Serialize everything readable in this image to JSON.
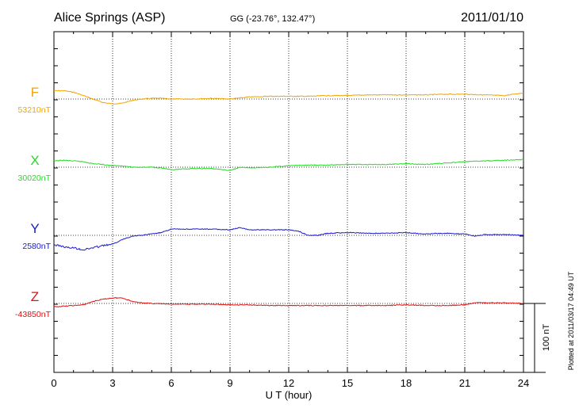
{
  "header": {
    "station": "Alice Springs (ASP)",
    "coords": "GG (-23.76°, 132.47°)",
    "date": "2011/01/10"
  },
  "side_note": "Plotted at 2011/03/17 04:49 UT",
  "scale_bar_label": "100 nT",
  "chart_data": {
    "type": "line",
    "title": "Alice Springs (ASP)",
    "subtitle": "GG (-23.76°, 132.47°)",
    "date": "2011/01/10",
    "xlabel": "U T (hour)",
    "xlim": [
      0,
      24
    ],
    "xticks": [
      0,
      3,
      6,
      9,
      12,
      15,
      18,
      21,
      24
    ],
    "grid": true,
    "scale_nT": 100,
    "series": [
      {
        "name": "F",
        "baseline_label": "53210nT",
        "baseline_nT": 53210,
        "color": "#f0a500",
        "x": [
          0,
          0.5,
          1,
          1.5,
          2,
          2.5,
          3,
          3.5,
          4,
          4.5,
          5,
          5.5,
          6,
          7,
          8,
          9,
          10,
          11,
          12,
          13,
          14,
          15,
          16,
          17,
          18,
          19,
          20,
          21,
          22,
          23,
          24
        ],
        "y": [
          53222,
          53222,
          53220,
          53215,
          53210,
          53205,
          53203,
          53204,
          53208,
          53210,
          53211,
          53211,
          53210,
          53210,
          53211,
          53210,
          53213,
          53214,
          53214,
          53214,
          53215,
          53215,
          53216,
          53216,
          53216,
          53216,
          53217,
          53217,
          53216,
          53215,
          53219
        ]
      },
      {
        "name": "X",
        "baseline_label": "30020nT",
        "baseline_nT": 30020,
        "color": "#22dd22",
        "x": [
          0,
          0.5,
          1,
          1.5,
          2,
          2.5,
          3,
          3.5,
          4,
          4.5,
          5,
          5.5,
          6,
          6.5,
          7,
          8,
          8.5,
          9,
          9.5,
          10,
          11,
          12,
          13,
          14,
          15,
          16,
          17,
          18,
          19,
          20,
          21,
          22,
          23,
          24
        ],
        "y": [
          30029,
          30030,
          30029,
          30028,
          30025,
          30024,
          30022,
          30022,
          30020,
          30020,
          30020,
          30019,
          30016,
          30017,
          30018,
          30018,
          30017,
          30015,
          30020,
          30019,
          30020,
          30022,
          30023,
          30023,
          30024,
          30024,
          30024,
          30025,
          30024,
          30026,
          30028,
          30029,
          30030,
          30031
        ]
      },
      {
        "name": "Y",
        "baseline_label": "2580nT",
        "baseline_nT": 2580,
        "color": "#1a1acc",
        "x": [
          0,
          0.3,
          0.7,
          1,
          1.5,
          2,
          2.5,
          3,
          3.5,
          4,
          4.5,
          5,
          5.5,
          6,
          7,
          8,
          9,
          9.5,
          10,
          11,
          12,
          12.5,
          13,
          13.5,
          14,
          15,
          16,
          17,
          18,
          19,
          20,
          21,
          21.5,
          22,
          23,
          24
        ],
        "y": [
          2566,
          2565,
          2562,
          2562,
          2559,
          2562,
          2565,
          2567,
          2574,
          2579,
          2580,
          2582,
          2584,
          2589,
          2589,
          2589,
          2588,
          2591,
          2588,
          2588,
          2588,
          2586,
          2580,
          2580,
          2583,
          2584,
          2583,
          2583,
          2584,
          2582,
          2583,
          2582,
          2579,
          2581,
          2581,
          2580
        ]
      },
      {
        "name": "Z",
        "baseline_label": "-43850nT",
        "baseline_nT": -43850,
        "color": "#e01010",
        "x": [
          0,
          0.5,
          1,
          1.5,
          2,
          2.5,
          3,
          3.5,
          4,
          4.5,
          5,
          6,
          7,
          8,
          9,
          10,
          11,
          12,
          13,
          14,
          15,
          16,
          17,
          18,
          19,
          20,
          21,
          21.5,
          22,
          23,
          24
        ],
        "y": [
          -43855,
          -43854,
          -43853,
          -43852,
          -43847,
          -43844,
          -43842,
          -43842,
          -43847,
          -43849,
          -43850,
          -43851,
          -43851,
          -43851,
          -43852,
          -43852,
          -43853,
          -43853,
          -43853,
          -43853,
          -43853,
          -43853,
          -43853,
          -43852,
          -43853,
          -43853,
          -43852,
          -43849,
          -43849,
          -43849,
          -43850
        ]
      }
    ]
  }
}
